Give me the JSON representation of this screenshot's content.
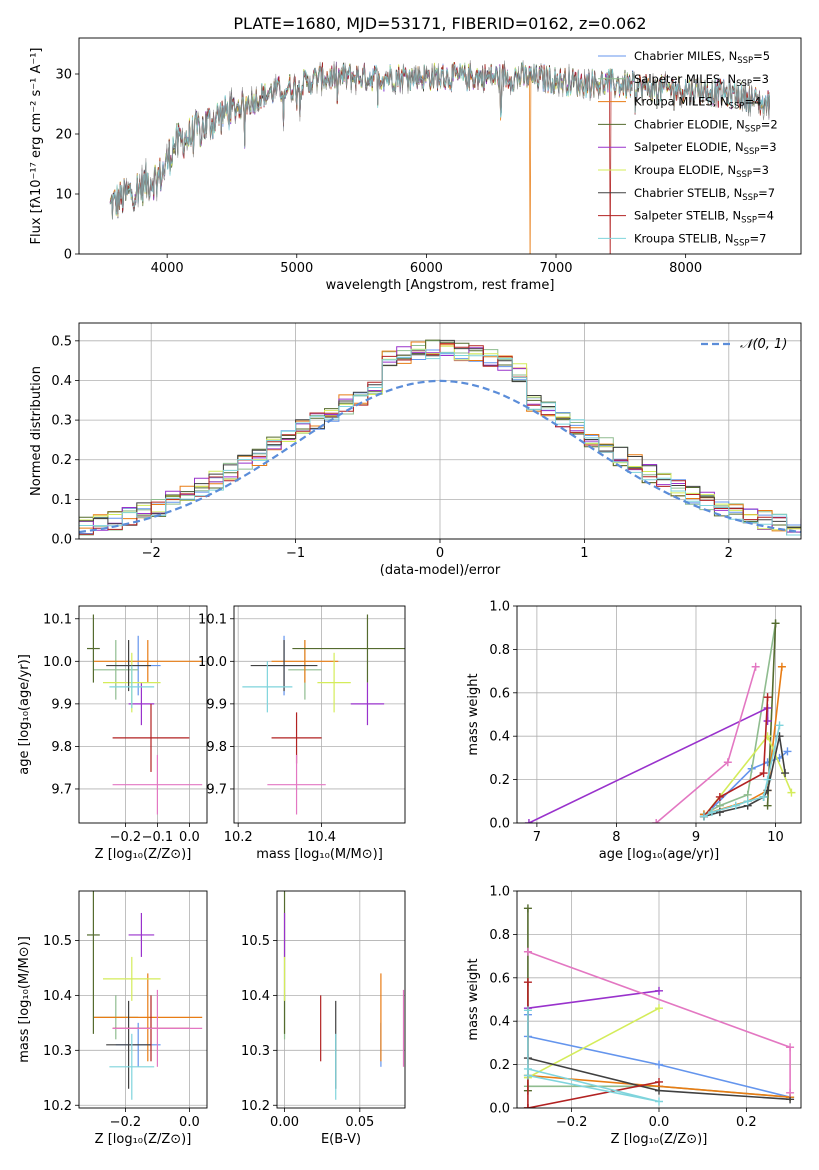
{
  "figure_title": "PLATE=1680, MJD=53171, FIBERID=0162, z=0.062",
  "model_colors": [
    "#6495ED",
    "#8FBC8F",
    "#E87C14",
    "#556B2F",
    "#9932CC",
    "#D4EC5A",
    "#404040",
    "#B22222",
    "#7FD4DC"
  ],
  "extra_color": "#E377C2",
  "chart_data": [
    {
      "id": "spectrum",
      "type": "line",
      "title": "PLATE=1680, MJD=53171, FIBERID=0162, z=0.062",
      "xlabel": "wavelength [Angstrom, rest frame]",
      "ylabel": "Flux [fλ10⁻¹⁷ erg cm⁻² s⁻¹ A⁻¹]",
      "xlim": [
        3320,
        8890
      ],
      "ylim": [
        0,
        36
      ],
      "xticks": [
        4000,
        5000,
        6000,
        7000,
        8000
      ],
      "yticks": [
        0,
        10,
        20,
        30
      ],
      "grid": false,
      "legend_position": "top-right",
      "series": [
        {
          "name": "Chabrier MILES, N_SSP=5"
        },
        {
          "name": "Salpeter MILES, N_SSP=3"
        },
        {
          "name": "Kroupa MILES, N_SSP=4"
        },
        {
          "name": "Chabrier ELODIE, N_SSP=2"
        },
        {
          "name": "Salpeter ELODIE, N_SSP=3"
        },
        {
          "name": "Kroupa ELODIE, N_SSP=3"
        },
        {
          "name": "Chabrier STELIB, N_SSP=7"
        },
        {
          "name": "Salpeter STELIB, N_SSP=4"
        },
        {
          "name": "Kroupa STELIB, N_SSP=7"
        }
      ],
      "continuum": {
        "x": [
          3560,
          3700,
          3850,
          3950,
          4050,
          4200,
          4400,
          4600,
          4800,
          5000,
          5200,
          5400,
          5600,
          5800,
          6000,
          6200,
          6400,
          6600,
          6800,
          7000,
          7200,
          7400,
          7600,
          7800,
          8000,
          8200,
          8400,
          8500,
          8600,
          8650
        ],
        "y": [
          8,
          10,
          12,
          13,
          18,
          20,
          23,
          25,
          27,
          28,
          29.5,
          29.5,
          29.5,
          29.5,
          29.5,
          29.5,
          29.5,
          29.5,
          29.5,
          29,
          28.5,
          28.5,
          28,
          27.5,
          27.5,
          27,
          26.5,
          26,
          25,
          25
        ]
      },
      "dropouts_x": [
        6800,
        7420
      ]
    },
    {
      "id": "residuals",
      "type": "histogram",
      "xlabel": "(data-model)/error",
      "ylabel": "Normed distribution",
      "xlim": [
        -2.5,
        2.5
      ],
      "ylim": [
        0,
        0.545
      ],
      "xticks": [
        -2,
        -1,
        0,
        1,
        2
      ],
      "yticks": [
        0.0,
        0.1,
        0.2,
        0.3,
        0.4,
        0.5
      ],
      "grid": true,
      "legend_position": "top-right",
      "legend": [
        "𝒩(0, 1)"
      ],
      "bin_width": 0.1,
      "reference_curve": {
        "name": "𝒩(0, 1)",
        "mean": 0,
        "sigma": 1
      }
    },
    {
      "id": "age-vs-Z",
      "type": "errorbar",
      "xlabel": "Z [log₁₀(Z/Z⊙)]",
      "ylabel": "age  [log₁₀(age/yr)]",
      "xlim": [
        -0.345,
        0.055
      ],
      "ylim": [
        9.62,
        10.13
      ],
      "xticks": [
        -0.2,
        -0.1,
        0.0
      ],
      "yticks": [
        9.7,
        9.8,
        9.9,
        10.0,
        10.1
      ],
      "grid": true,
      "points": [
        {
          "x": -0.16,
          "xerr": 0.07,
          "y": 9.99,
          "yerr": 0.07
        },
        {
          "x": -0.23,
          "xerr": 0.07,
          "y": 9.98,
          "yerr": 0.07
        },
        {
          "x": -0.13,
          "xerr": 0.17,
          "y": 10.0,
          "yerr": 0.05
        },
        {
          "x": -0.3,
          "xerr": 0.02,
          "y": 10.03,
          "yerr": 0.08
        },
        {
          "x": -0.15,
          "xerr": 0.04,
          "y": 9.9,
          "yerr": 0.05
        },
        {
          "x": -0.18,
          "xerr": 0.09,
          "y": 9.95,
          "yerr": 0.07
        },
        {
          "x": -0.19,
          "xerr": 0.07,
          "y": 9.99,
          "yerr": 0.06
        },
        {
          "x": -0.12,
          "xerr": 0.12,
          "y": 9.82,
          "yerr": 0.08
        },
        {
          "x": -0.18,
          "xerr": 0.07,
          "y": 9.94,
          "yerr": 0.05
        },
        {
          "x": -0.1,
          "xerr": 0.14,
          "y": 9.71,
          "yerr": 0.07,
          "extra": true
        }
      ]
    },
    {
      "id": "age-vs-mass",
      "type": "errorbar",
      "xlabel": "mass [log₁₀(M/M⊙)]",
      "ylabel": "",
      "xlim": [
        10.19,
        10.6
      ],
      "ylim": [
        9.62,
        10.13
      ],
      "xticks": [
        10.2,
        10.4
      ],
      "yticks": [
        9.7,
        9.8,
        9.9,
        10.0,
        10.1
      ],
      "grid": true,
      "points": [
        {
          "x": 10.31,
          "xerr": 0.04,
          "y": 9.99,
          "yerr": 0.07
        },
        {
          "x": 10.36,
          "xerr": 0.04,
          "y": 9.98,
          "yerr": 0.07
        },
        {
          "x": 10.36,
          "xerr": 0.08,
          "y": 10.0,
          "yerr": 0.05
        },
        {
          "x": 10.51,
          "xerr": 0.18,
          "y": 10.03,
          "yerr": 0.08
        },
        {
          "x": 10.51,
          "xerr": 0.04,
          "y": 9.9,
          "yerr": 0.05
        },
        {
          "x": 10.43,
          "xerr": 0.04,
          "y": 9.95,
          "yerr": 0.07
        },
        {
          "x": 10.31,
          "xerr": 0.08,
          "y": 9.99,
          "yerr": 0.06
        },
        {
          "x": 10.34,
          "xerr": 0.06,
          "y": 9.82,
          "yerr": 0.06
        },
        {
          "x": 10.27,
          "xerr": 0.06,
          "y": 9.94,
          "yerr": 0.06
        },
        {
          "x": 10.34,
          "xerr": 0.07,
          "y": 9.71,
          "yerr": 0.07,
          "extra": true
        }
      ]
    },
    {
      "id": "mass-weight-vs-age",
      "type": "line",
      "xlabel": "age  [log₁₀(age/yr)]",
      "ylabel": "mass weight",
      "xlim": [
        6.75,
        10.32
      ],
      "ylim": [
        0.0,
        1.0
      ],
      "xticks": [
        7,
        8,
        9,
        10
      ],
      "yticks": [
        0.0,
        0.2,
        0.4,
        0.6,
        0.8,
        1.0
      ],
      "grid": true,
      "series": [
        {
          "x": [
            9.1,
            9.7,
            9.9,
            10.05,
            10.15
          ],
          "y": [
            0.03,
            0.25,
            0.28,
            0.3,
            0.33
          ]
        },
        {
          "x": [
            9.1,
            9.3,
            9.65,
            10.0
          ],
          "y": [
            0.04,
            0.08,
            0.13,
            0.92
          ]
        },
        {
          "x": [
            9.1,
            9.65,
            9.9,
            10.08
          ],
          "y": [
            0.04,
            0.1,
            0.15,
            0.72
          ]
        },
        {
          "x": [
            9.9,
            10.0
          ],
          "y": [
            0.08,
            0.92
          ]
        },
        {
          "x": [
            6.9,
            9.9,
            9.9
          ],
          "y": [
            0.0,
            0.53,
            0.47
          ]
        },
        {
          "x": [
            9.1,
            9.9,
            10.2
          ],
          "y": [
            0.03,
            0.4,
            0.14
          ]
        },
        {
          "x": [
            9.1,
            9.3,
            9.65,
            9.85,
            9.9,
            10.05,
            10.12
          ],
          "y": [
            0.03,
            0.05,
            0.08,
            0.12,
            0.15,
            0.4,
            0.23
          ]
        },
        {
          "x": [
            9.1,
            9.3,
            9.85,
            9.9
          ],
          "y": [
            0.03,
            0.12,
            0.23,
            0.58
          ]
        },
        {
          "x": [
            9.1,
            9.2,
            9.5,
            9.65,
            9.85,
            9.9,
            10.05
          ],
          "y": [
            0.03,
            0.05,
            0.08,
            0.1,
            0.12,
            0.2,
            0.45
          ]
        },
        {
          "x": [
            8.5,
            9.4,
            9.75
          ],
          "y": [
            0.0,
            0.28,
            0.72
          ],
          "extra": true
        }
      ]
    },
    {
      "id": "mass-vs-Z",
      "type": "errorbar",
      "xlabel": "Z [log₁₀(Z/Z⊙)]",
      "ylabel": "mass [log₁₀(M/M⊙)]",
      "xlim": [
        -0.345,
        0.055
      ],
      "ylim": [
        10.195,
        10.59
      ],
      "xticks": [
        -0.2,
        0.0
      ],
      "yticks": [
        10.2,
        10.3,
        10.4,
        10.5
      ],
      "grid": true,
      "points": [
        {
          "x": -0.16,
          "xerr": 0.07,
          "y": 10.31,
          "yerr": 0.04
        },
        {
          "x": -0.23,
          "xerr": 0.07,
          "y": 10.36,
          "yerr": 0.04
        },
        {
          "x": -0.13,
          "xerr": 0.17,
          "y": 10.36,
          "yerr": 0.08
        },
        {
          "x": -0.3,
          "xerr": 0.02,
          "y": 10.51,
          "yerr": 0.18
        },
        {
          "x": -0.15,
          "xerr": 0.04,
          "y": 10.51,
          "yerr": 0.04
        },
        {
          "x": -0.18,
          "xerr": 0.09,
          "y": 10.43,
          "yerr": 0.04
        },
        {
          "x": -0.19,
          "xerr": 0.07,
          "y": 10.31,
          "yerr": 0.08
        },
        {
          "x": -0.12,
          "xerr": 0.12,
          "y": 10.34,
          "yerr": 0.06
        },
        {
          "x": -0.18,
          "xerr": 0.07,
          "y": 10.27,
          "yerr": 0.06
        },
        {
          "x": -0.1,
          "xerr": 0.14,
          "y": 10.34,
          "yerr": 0.07,
          "extra": true
        }
      ]
    },
    {
      "id": "mass-vs-EBV",
      "type": "errorbar",
      "xlabel": "E(B-V)",
      "ylabel": "",
      "xlim": [
        -0.005,
        0.08
      ],
      "ylim": [
        10.195,
        10.59
      ],
      "xticks": [
        0.0,
        0.05
      ],
      "yticks": [
        10.2,
        10.3,
        10.4,
        10.5
      ],
      "grid": true,
      "points": [
        {
          "x": 0.064,
          "xerr": 0,
          "y": 10.31,
          "yerr": 0.04
        },
        {
          "x": 0.0,
          "xerr": 0,
          "y": 10.36,
          "yerr": 0.04
        },
        {
          "x": 0.064,
          "xerr": 0,
          "y": 10.36,
          "yerr": 0.08
        },
        {
          "x": 0.0,
          "xerr": 0,
          "y": 10.51,
          "yerr": 0.18
        },
        {
          "x": 0.0,
          "xerr": 0,
          "y": 10.51,
          "yerr": 0.04
        },
        {
          "x": 0.0,
          "xerr": 0,
          "y": 10.43,
          "yerr": 0.04
        },
        {
          "x": 0.034,
          "xerr": 0,
          "y": 10.31,
          "yerr": 0.08
        },
        {
          "x": 0.024,
          "xerr": 0,
          "y": 10.34,
          "yerr": 0.06
        },
        {
          "x": 0.034,
          "xerr": 0,
          "y": 10.27,
          "yerr": 0.06
        },
        {
          "x": 0.079,
          "xerr": 0,
          "y": 10.34,
          "yerr": 0.07,
          "extra": true
        }
      ]
    },
    {
      "id": "mass-weight-vs-Z",
      "type": "line",
      "xlabel": "Z [log₁₀(Z/Z⊙)]",
      "ylabel": "mass weight",
      "xlim": [
        -0.325,
        0.325
      ],
      "ylim": [
        0.0,
        1.0
      ],
      "xticks": [
        -0.2,
        0.0,
        0.2
      ],
      "yticks": [
        0.0,
        0.2,
        0.4,
        0.6,
        0.8,
        1.0
      ],
      "grid": true,
      "series": [
        {
          "x": [
            -0.3,
            -0.3,
            0.0,
            0.3
          ],
          "y": [
            0.43,
            0.33,
            0.2,
            0.05
          ]
        },
        {
          "x": [
            -0.3,
            0.0,
            0.3
          ],
          "y": [
            0.1,
            0.1,
            0.05
          ]
        },
        {
          "x": [
            -0.3,
            0.0,
            0.3
          ],
          "y": [
            0.15,
            0.1,
            0.05
          ]
        },
        {
          "x": [
            -0.3,
            -0.3
          ],
          "y": [
            0.08,
            0.92
          ]
        },
        {
          "x": [
            -0.3,
            0.0
          ],
          "y": [
            0.46,
            0.54
          ]
        },
        {
          "x": [
            -0.3,
            0.0
          ],
          "y": [
            0.14,
            0.46
          ]
        },
        {
          "x": [
            -0.3,
            0.0,
            0.3
          ],
          "y": [
            0.23,
            0.08,
            0.04
          ]
        },
        {
          "x": [
            -0.3,
            0.0,
            -0.3,
            -0.3
          ],
          "y": [
            0.0,
            0.12,
            0.0,
            0.58
          ]
        },
        {
          "x": [
            -0.3,
            0.0,
            -0.3,
            -0.3
          ],
          "y": [
            0.18,
            0.03,
            0.15,
            0.45
          ]
        },
        {
          "x": [
            -0.3,
            0.3,
            0.3
          ],
          "y": [
            0.72,
            0.28,
            0.07
          ],
          "extra": true
        }
      ]
    }
  ]
}
